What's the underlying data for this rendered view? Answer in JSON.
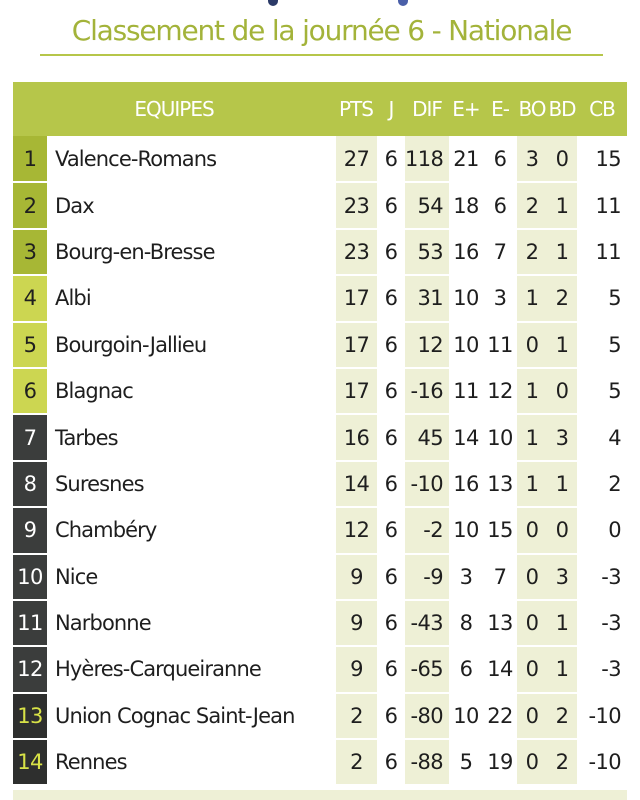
{
  "title": "Classement de la journée 6 - Nationale",
  "colors": {
    "accent": "#b6c64a",
    "title_text": "#a3b33a",
    "rank_top": "#a7b735",
    "rank_mid": "#ccd651",
    "rank_low": "#3b3d3c",
    "rank_bottom_text": "#d8e247",
    "negative": "#c0392b",
    "shaded_cell": "#eef0d6"
  },
  "headers": {
    "team": "EQUIPES",
    "pts": "PTS",
    "j": "J",
    "dif": "DIF",
    "ep": "E+",
    "em": "E-",
    "bo": "BO",
    "bd": "BD",
    "cb": "CB"
  },
  "rows": [
    {
      "rank": "1",
      "team": "Valence-Romans",
      "pts": "27",
      "j": "6",
      "dif": "118",
      "ep": "21",
      "em": "6",
      "bo": "3",
      "bd": "0",
      "cb": "15"
    },
    {
      "rank": "2",
      "team": "Dax",
      "pts": "23",
      "j": "6",
      "dif": "54",
      "ep": "18",
      "em": "6",
      "bo": "2",
      "bd": "1",
      "cb": "11"
    },
    {
      "rank": "3",
      "team": "Bourg-en-Bresse",
      "pts": "23",
      "j": "6",
      "dif": "53",
      "ep": "16",
      "em": "7",
      "bo": "2",
      "bd": "1",
      "cb": "11"
    },
    {
      "rank": "4",
      "team": "Albi",
      "pts": "17",
      "j": "6",
      "dif": "31",
      "ep": "10",
      "em": "3",
      "bo": "1",
      "bd": "2",
      "cb": "5"
    },
    {
      "rank": "5",
      "team": "Bourgoin-Jallieu",
      "pts": "17",
      "j": "6",
      "dif": "12",
      "ep": "10",
      "em": "11",
      "bo": "0",
      "bd": "1",
      "cb": "5"
    },
    {
      "rank": "6",
      "team": "Blagnac",
      "pts": "17",
      "j": "6",
      "dif": "-16",
      "ep": "11",
      "em": "12",
      "bo": "1",
      "bd": "0",
      "cb": "5"
    },
    {
      "rank": "7",
      "team": "Tarbes",
      "pts": "16",
      "j": "6",
      "dif": "45",
      "ep": "14",
      "em": "10",
      "bo": "1",
      "bd": "3",
      "cb": "4"
    },
    {
      "rank": "8",
      "team": "Suresnes",
      "pts": "14",
      "j": "6",
      "dif": "-10",
      "ep": "16",
      "em": "13",
      "bo": "1",
      "bd": "1",
      "cb": "2"
    },
    {
      "rank": "9",
      "team": "Chambéry",
      "pts": "12",
      "j": "6",
      "dif": "-2",
      "ep": "10",
      "em": "15",
      "bo": "0",
      "bd": "0",
      "cb": "0"
    },
    {
      "rank": "10",
      "team": "Nice",
      "pts": "9",
      "j": "6",
      "dif": "-9",
      "ep": "3",
      "em": "7",
      "bo": "0",
      "bd": "3",
      "cb": "-3"
    },
    {
      "rank": "11",
      "team": "Narbonne",
      "pts": "9",
      "j": "6",
      "dif": "-43",
      "ep": "8",
      "em": "13",
      "bo": "0",
      "bd": "1",
      "cb": "-3"
    },
    {
      "rank": "12",
      "team": "Hyères-Carqueiranne",
      "pts": "9",
      "j": "6",
      "dif": "-65",
      "ep": "6",
      "em": "14",
      "bo": "0",
      "bd": "1",
      "cb": "-3"
    },
    {
      "rank": "13",
      "team": "Union Cognac Saint-Jean",
      "pts": "2",
      "j": "6",
      "dif": "-80",
      "ep": "10",
      "em": "22",
      "bo": "0",
      "bd": "2",
      "cb": "-10"
    },
    {
      "rank": "14",
      "team": "Rennes",
      "pts": "2",
      "j": "6",
      "dif": "-88",
      "ep": "5",
      "em": "19",
      "bo": "0",
      "bd": "2",
      "cb": "-10"
    }
  ]
}
